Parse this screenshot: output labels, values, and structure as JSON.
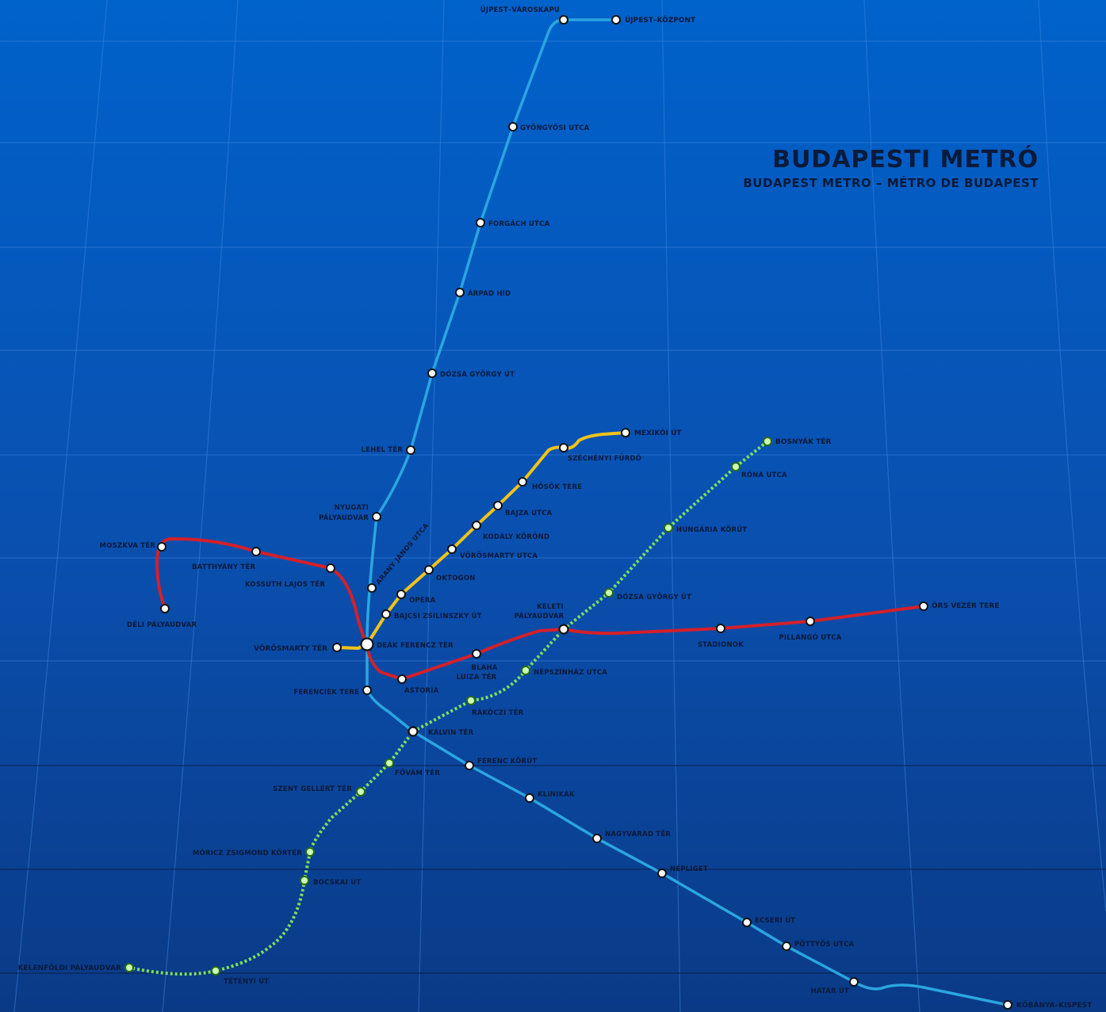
{
  "title": "BUDAPESTI METRÓ",
  "subtitle": "BUDAPEST METRO – MÉTRO DE BUDAPEST",
  "colors": {
    "background_top": "#0060c8",
    "background_bottom": "#0a3c8c",
    "m1_yellow": "#f2c318",
    "m2_red": "#d4202a",
    "m3_blue": "#2aa6e0",
    "m4_green": "#7ee05a",
    "label_text": "#0a1a3a",
    "title_text": "#0a1a3a",
    "station_fill": "#ffffff",
    "station_stroke": "#111111"
  },
  "stations": {
    "ujpest_varoskapu": "ÚJPEST–VÁROSKAPU",
    "ujpest_kozpont": "ÚJPEST–KÖZPONT",
    "gyongyosi_utca": "GYÖNGYÖSI UTCA",
    "forgach_utca": "FORGÁCH UTCA",
    "arpad_hid": "ÁRPÁD HÍD",
    "dozsa_gyorgy_ut_m3": "DÓZSA GYÖRGY ÚT",
    "lehel_ter": "LEHEL TÉR",
    "nyugati_1": "NYUGATI",
    "nyugati_2": "PÁLYAUDVAR",
    "mexikoi_ut": "MEXIKÓI ÚT",
    "szechenyi_furdo": "SZÉCHÉNYI FÜRDŐ",
    "hosok_tere": "HŐSÖK TERE",
    "bajza_utca": "BAJZA UTCA",
    "kodaly_korond": "KODÁLY KÖRÖND",
    "vorosmarty_utca": "VÖRÖSMARTY UTCA",
    "oktogon": "OKTOGON",
    "opera": "OPERA",
    "bajcsy": "BAJCSI ZSILINSZKY ÚT",
    "arany_janos": "ARANY JÁNOS UTCA",
    "vorosmarty_ter": "VÖRÖSMARTY TÉR",
    "deak_ferencz": "DEÁK FERENCZ TÉR",
    "moszkva_ter": "MOSZKVA TÉR",
    "batthyany_ter": "BATTHYÁNY TÉR",
    "kossuth": "KOSSUTH LAJOS TÉR",
    "deli": "DÉLI PÁLYAUDVAR",
    "astoria": "ASTORIA",
    "blaha_1": "BLAHA",
    "blaha_2": "LUIZA TÉR",
    "keleti_1": "KELETI",
    "keleti_2": "PÁLYAUDVAR",
    "stadionok": "STADIONOK",
    "pillango": "PILLANGÓ UTCA",
    "ors_vezer": "ÖRS VEZÉR TERE",
    "bosnyak_ter": "BOSNYÁK TÉR",
    "rona_utca": "RÓNA UTCA",
    "hungaria_korut": "HUNGÁRIA KÖRÚT",
    "dozsa_gyorgy_ut_m4": "DÓZSA GYÖRGY ÚT",
    "nepszinhaz": "NÉPSZÍNHÁZ UTCA",
    "rakoczi_ter": "RÁKÓCZI TÉR",
    "kalvin_ter": "KÁLVIN TÉR",
    "fovam_ter": "FŐVÁM TÉR",
    "szent_gellert": "SZENT GELLÉRT TÉR",
    "moricz": "MÓRICZ ZSIGMOND KÖRTÉR",
    "bocskai": "BOCSKAI ÚT",
    "tetenyi": "TÉTÉNYI ÚT",
    "kelenfold": "KELENFÖLDI PÁLYAUDVAR",
    "ferenciek_tere": "FERENCIEK TERE",
    "ferenc_korut": "FERENC KÖRÚT",
    "klinikak": "KLINIKÁK",
    "nagyvarad_ter": "NAGYVÁRAD TÉR",
    "nepliget": "NÉPLIGET",
    "ecseri_ut": "ECSERI ÚT",
    "pottyos_utca": "PÖTTYÖS UTCA",
    "hatar_ut": "HATÁR ÚT",
    "kobanya_kispest": "KŐBÁNYA–KISPEST"
  }
}
